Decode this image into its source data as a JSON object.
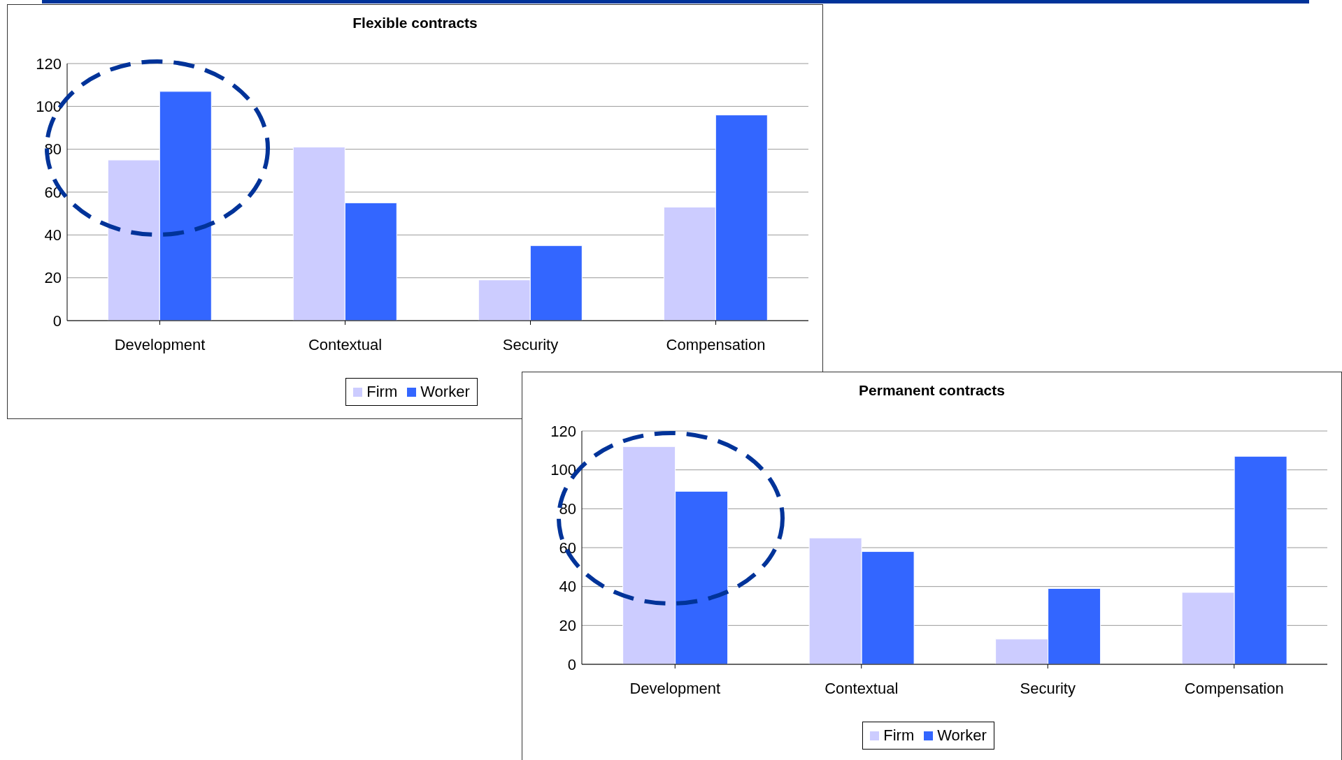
{
  "chart_data": [
    {
      "type": "bar",
      "title": "Flexible contracts",
      "categories": [
        "Development",
        "Contextual",
        "Security",
        "Compensation"
      ],
      "series": [
        {
          "name": "Firm",
          "color": "#ccccff",
          "values": [
            75,
            81,
            19,
            53
          ]
        },
        {
          "name": "Worker",
          "color": "#3366ff",
          "values": [
            107,
            55,
            35,
            96
          ]
        }
      ],
      "ylim": [
        0,
        120
      ],
      "yticks": [
        0,
        20,
        40,
        60,
        80,
        100,
        120
      ],
      "grid": "y",
      "legend": "bottom"
    },
    {
      "type": "bar",
      "title": "Permanent contracts",
      "categories": [
        "Development",
        "Contextual",
        "Security",
        "Compensation"
      ],
      "series": [
        {
          "name": "Firm",
          "color": "#ccccff",
          "values": [
            112,
            65,
            13,
            37
          ]
        },
        {
          "name": "Worker",
          "color": "#3366ff",
          "values": [
            89,
            58,
            39,
            107
          ]
        }
      ],
      "ylim": [
        0,
        120
      ],
      "yticks": [
        0,
        20,
        40,
        60,
        80,
        100,
        120
      ],
      "grid": "y",
      "legend": "bottom"
    }
  ]
}
